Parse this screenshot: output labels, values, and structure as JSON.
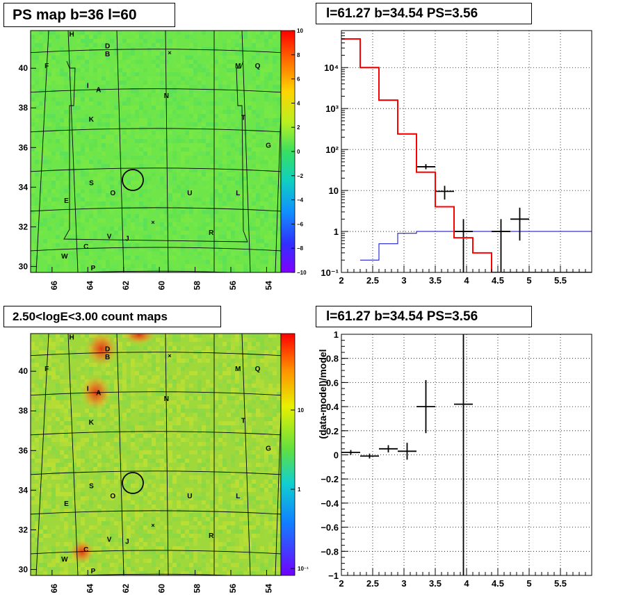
{
  "panels": {
    "top_left_title": "PS map b=36 l=60",
    "top_right_title": "l=61.27 b=34.54 PS=3.56",
    "bottom_left_title": "2.50<logE<3.00 count maps",
    "bottom_right_title": "l=61.27 b=34.54 PS=3.56"
  },
  "colors": {
    "map_green": "#6ee64a",
    "spectrum_red": "#ff0000",
    "background_blue": "#0000cc",
    "data_black": "#000000"
  },
  "sky_maps": {
    "x_ticks": [
      "66",
      "64",
      "62",
      "60",
      "58",
      "56",
      "54"
    ],
    "y_ticks": [
      "30",
      "32",
      "34",
      "36",
      "38",
      "40"
    ],
    "source_labels": [
      {
        "id": "H",
        "l": 64.9,
        "b": 41.6
      },
      {
        "id": "D",
        "l": 62.9,
        "b": 41.0
      },
      {
        "id": "B",
        "l": 62.9,
        "b": 40.6
      },
      {
        "id": "F",
        "l": 66.3,
        "b": 40.0
      },
      {
        "id": "M",
        "l": 55.6,
        "b": 40.0
      },
      {
        "id": "Q",
        "l": 54.5,
        "b": 40.0
      },
      {
        "id": "I",
        "l": 64.0,
        "b": 39.0
      },
      {
        "id": "A",
        "l": 63.4,
        "b": 38.8
      },
      {
        "id": "N",
        "l": 59.6,
        "b": 38.5
      },
      {
        "id": "K",
        "l": 63.8,
        "b": 37.3
      },
      {
        "id": "T",
        "l": 55.3,
        "b": 37.4
      },
      {
        "id": "G",
        "l": 53.9,
        "b": 36.0
      },
      {
        "id": "S",
        "l": 63.8,
        "b": 34.1
      },
      {
        "id": "O",
        "l": 62.6,
        "b": 33.6
      },
      {
        "id": "U",
        "l": 58.3,
        "b": 33.6
      },
      {
        "id": "L",
        "l": 55.6,
        "b": 33.6
      },
      {
        "id": "E",
        "l": 65.2,
        "b": 33.2
      },
      {
        "id": "R",
        "l": 57.1,
        "b": 31.6
      },
      {
        "id": "V",
        "l": 62.8,
        "b": 31.4
      },
      {
        "id": "J",
        "l": 61.8,
        "b": 31.3
      },
      {
        "id": "C",
        "l": 64.1,
        "b": 30.9
      },
      {
        "id": "W",
        "l": 65.3,
        "b": 30.4
      },
      {
        "id": "P",
        "l": 63.7,
        "b": 29.8
      }
    ],
    "ps_map": {
      "colorbar_ticks": [
        "10",
        "8",
        "6",
        "4",
        "2",
        "0",
        "−2",
        "−4",
        "−6",
        "−8",
        "−10"
      ]
    },
    "count_map": {
      "colorbar_ticks": [
        "10",
        "1",
        "10⁻¹"
      ]
    }
  },
  "chart_data": [
    {
      "type": "line",
      "title": "l=61.27 b=34.54 PS=3.56",
      "xlabel": "",
      "ylabel": "",
      "xlim": [
        2,
        6
      ],
      "ylim": [
        0.1,
        80000
      ],
      "log_y": true,
      "grid": true,
      "x_tick_labels": [
        "2",
        "2.5",
        "3",
        "3.5",
        "4",
        "4.5",
        "5",
        "5.5"
      ],
      "y_tick_labels": [
        "10⁻¹",
        "1",
        "10",
        "10²",
        "10³",
        "10⁴"
      ],
      "series": [
        {
          "kind": "step",
          "color": "#ff0000",
          "bin_edges": [
            2.0,
            2.3,
            2.6,
            2.9,
            3.2,
            3.5,
            3.8,
            4.1,
            4.4,
            6.0
          ],
          "values": [
            50000,
            10000,
            1600,
            240,
            28,
            4,
            0.7,
            0.3,
            0.1
          ]
        },
        {
          "kind": "step",
          "color": "#0000cc",
          "bin_edges": [
            2.3,
            2.6,
            2.9,
            3.2,
            3.5,
            3.8,
            4.1,
            4.4,
            6.0
          ],
          "values": [
            0.2,
            0.5,
            0.9,
            1.0,
            1.0,
            1.0,
            1.0,
            1.0
          ]
        },
        {
          "kind": "points",
          "color": "#000000",
          "points": [
            {
              "x": 2.15,
              "y": 50000,
              "xerr": 0.15,
              "ylo": 50000,
              "yhi": 50000
            },
            {
              "x": 2.45,
              "y": 10000,
              "xerr": 0.15,
              "ylo": 10000,
              "yhi": 10000
            },
            {
              "x": 2.75,
              "y": 1600,
              "xerr": 0.15,
              "ylo": 1600,
              "yhi": 1600
            },
            {
              "x": 3.05,
              "y": 240,
              "xerr": 0.15,
              "ylo": 240,
              "yhi": 240
            },
            {
              "x": 3.35,
              "y": 38,
              "xerr": 0.15,
              "ylo": 33,
              "yhi": 44
            },
            {
              "x": 3.65,
              "y": 9.5,
              "xerr": 0.15,
              "ylo": 6,
              "yhi": 13
            },
            {
              "x": 3.95,
              "y": 1.0,
              "xerr": 0.15,
              "ylo": 0.1,
              "yhi": 2.0
            },
            {
              "x": 4.55,
              "y": 1.0,
              "xerr": 0.15,
              "ylo": 0.1,
              "yhi": 2.0
            },
            {
              "x": 4.85,
              "y": 2.0,
              "xerr": 0.15,
              "ylo": 0.6,
              "yhi": 3.8
            }
          ]
        }
      ]
    },
    {
      "type": "scatter",
      "title": "l=61.27 b=34.54 PS=3.56",
      "xlabel": "",
      "ylabel": "(data-model)/model",
      "xlim": [
        2,
        6
      ],
      "ylim": [
        -1,
        1
      ],
      "grid": true,
      "x_tick_labels": [
        "2",
        "2.5",
        "3",
        "3.5",
        "4",
        "4.5",
        "5",
        "5.5"
      ],
      "y_tick_labels": [
        "−1",
        "−0.8",
        "−0.6",
        "−0.4",
        "−0.2",
        "0",
        "0.2",
        "0.4",
        "0.6",
        "0.8",
        "1"
      ],
      "series": [
        {
          "kind": "points",
          "color": "#000000",
          "points": [
            {
              "x": 2.15,
              "y": 0.02,
              "xerr": 0.15,
              "ylo": 0.0,
              "yhi": 0.04
            },
            {
              "x": 2.45,
              "y": -0.01,
              "xerr": 0.15,
              "ylo": -0.03,
              "yhi": 0.01
            },
            {
              "x": 2.75,
              "y": 0.05,
              "xerr": 0.15,
              "ylo": 0.02,
              "yhi": 0.08
            },
            {
              "x": 3.05,
              "y": 0.03,
              "xerr": 0.15,
              "ylo": -0.04,
              "yhi": 0.1
            },
            {
              "x": 3.35,
              "y": 0.4,
              "xerr": 0.15,
              "ylo": 0.18,
              "yhi": 0.62
            },
            {
              "x": 3.95,
              "y": 0.42,
              "xerr": 0.15,
              "ylo": -1.0,
              "yhi": 1.0
            }
          ]
        }
      ]
    }
  ]
}
